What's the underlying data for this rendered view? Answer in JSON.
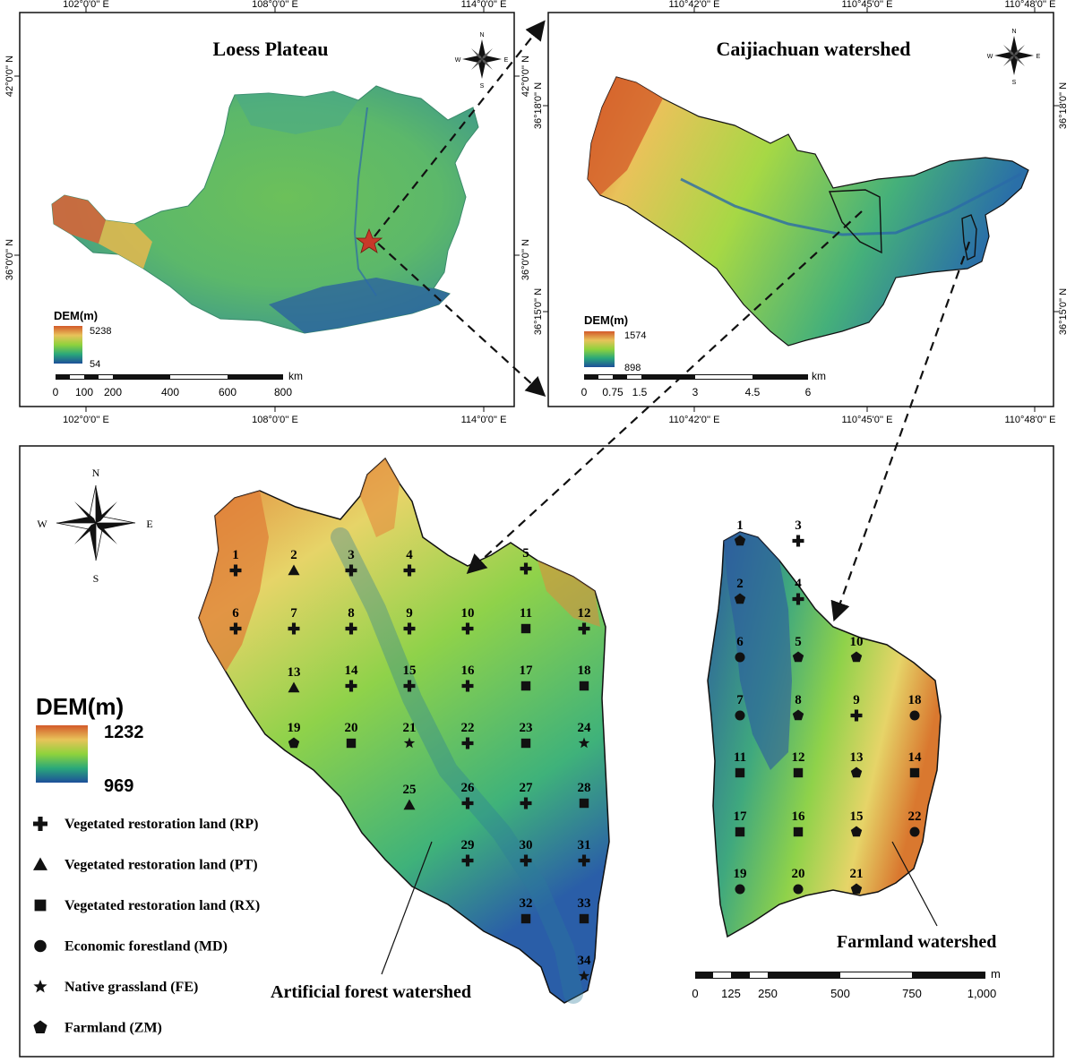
{
  "panel_loess": {
    "title": "Loess Plateau",
    "top_ticks": [
      "102°0'0'' E",
      "108°0'0'' E",
      "114°0'0'' E"
    ],
    "bottom_ticks": [
      "102°0'0'' E",
      "108°0'0'' E",
      "114°0'0'' E"
    ],
    "left_ticks": [
      "42°0'0'' N",
      "36°0'0'' N"
    ],
    "right_ticks": [
      "42°0'0'' N",
      "36°0'0'' N"
    ],
    "dem_title": "DEM(m)",
    "dem_max": "5238",
    "dem_min": "54",
    "scale_unit": "km",
    "scale_labels": [
      "0",
      "100",
      "200",
      "400",
      "600",
      "800"
    ]
  },
  "panel_caijiachuan": {
    "title": "Caijiachuan watershed",
    "top_ticks": [
      "110°42'0'' E",
      "110°45'0'' E",
      "110°48'0'' E"
    ],
    "bottom_ticks": [
      "110°42'0'' E",
      "110°45'0'' E",
      "110°48'0'' E"
    ],
    "left_ticks": [
      "36°18'0'' N",
      "36°15'0'' N"
    ],
    "right_ticks": [
      "36°18'0'' N",
      "36°15'0'' N"
    ],
    "dem_title": "DEM(m)",
    "dem_max": "1574",
    "dem_min": "898",
    "scale_unit": "km",
    "scale_labels": [
      "0",
      "0.75",
      "1.5",
      "3",
      "4.5",
      "6"
    ]
  },
  "panel_detail": {
    "dem_title": "DEM(m)",
    "dem_max": "1232",
    "dem_min": "969",
    "artificial_label": "Artificial forest watershed",
    "farmland_label": "Farmland watershed",
    "scale_unit": "m",
    "scale_labels": [
      "0",
      "125",
      "250",
      "500",
      "750",
      "1,000"
    ],
    "legend": [
      {
        "symbol": "plus",
        "label": "Vegetated restoration land (RP)"
      },
      {
        "symbol": "triangle",
        "label": "Vegetated restoration land (PT)"
      },
      {
        "symbol": "square",
        "label": "Vegetated restoration land (RX)"
      },
      {
        "symbol": "circle",
        "label": "Economic forestland (MD)"
      },
      {
        "symbol": "star",
        "label": "Native grassland (FE)"
      },
      {
        "symbol": "pentagon",
        "label": "Farmland (ZM)"
      }
    ]
  },
  "compass_labels": {
    "n": "N",
    "s": "S",
    "e": "E",
    "w": "W"
  },
  "artificial_sites": [
    {
      "id": "1",
      "type": "plus"
    },
    {
      "id": "2",
      "type": "triangle"
    },
    {
      "id": "3",
      "type": "plus"
    },
    {
      "id": "4",
      "type": "plus"
    },
    {
      "id": "5",
      "type": "plus"
    },
    {
      "id": "6",
      "type": "plus"
    },
    {
      "id": "7",
      "type": "plus"
    },
    {
      "id": "8",
      "type": "plus"
    },
    {
      "id": "9",
      "type": "plus"
    },
    {
      "id": "10",
      "type": "plus"
    },
    {
      "id": "11",
      "type": "square"
    },
    {
      "id": "12",
      "type": "plus"
    },
    {
      "id": "13",
      "type": "triangle"
    },
    {
      "id": "14",
      "type": "plus"
    },
    {
      "id": "15",
      "type": "plus"
    },
    {
      "id": "16",
      "type": "plus"
    },
    {
      "id": "17",
      "type": "square"
    },
    {
      "id": "18",
      "type": "square"
    },
    {
      "id": "19",
      "type": "pentagon"
    },
    {
      "id": "20",
      "type": "square"
    },
    {
      "id": "21",
      "type": "star"
    },
    {
      "id": "22",
      "type": "plus"
    },
    {
      "id": "23",
      "type": "square"
    },
    {
      "id": "24",
      "type": "star"
    },
    {
      "id": "25",
      "type": "triangle"
    },
    {
      "id": "26",
      "type": "plus"
    },
    {
      "id": "27",
      "type": "plus"
    },
    {
      "id": "28",
      "type": "square"
    },
    {
      "id": "29",
      "type": "plus"
    },
    {
      "id": "30",
      "type": "plus"
    },
    {
      "id": "31",
      "type": "plus"
    },
    {
      "id": "32",
      "type": "square"
    },
    {
      "id": "33",
      "type": "square"
    },
    {
      "id": "34",
      "type": "star"
    }
  ],
  "farmland_sites": [
    {
      "id": "1",
      "type": "pentagon"
    },
    {
      "id": "2",
      "type": "pentagon"
    },
    {
      "id": "3",
      "type": "plus"
    },
    {
      "id": "4",
      "type": "plus"
    },
    {
      "id": "5",
      "type": "pentagon"
    },
    {
      "id": "6",
      "type": "circle"
    },
    {
      "id": "7",
      "type": "circle"
    },
    {
      "id": "8",
      "type": "pentagon"
    },
    {
      "id": "9",
      "type": "plus"
    },
    {
      "id": "10",
      "type": "pentagon"
    },
    {
      "id": "11",
      "type": "square"
    },
    {
      "id": "12",
      "type": "square"
    },
    {
      "id": "13",
      "type": "pentagon"
    },
    {
      "id": "14",
      "type": "square"
    },
    {
      "id": "15",
      "type": "pentagon"
    },
    {
      "id": "16",
      "type": "square"
    },
    {
      "id": "17",
      "type": "square"
    },
    {
      "id": "18",
      "type": "circle"
    },
    {
      "id": "19",
      "type": "circle"
    },
    {
      "id": "20",
      "type": "circle"
    },
    {
      "id": "21",
      "type": "pentagon"
    },
    {
      "id": "22",
      "type": "circle"
    }
  ]
}
